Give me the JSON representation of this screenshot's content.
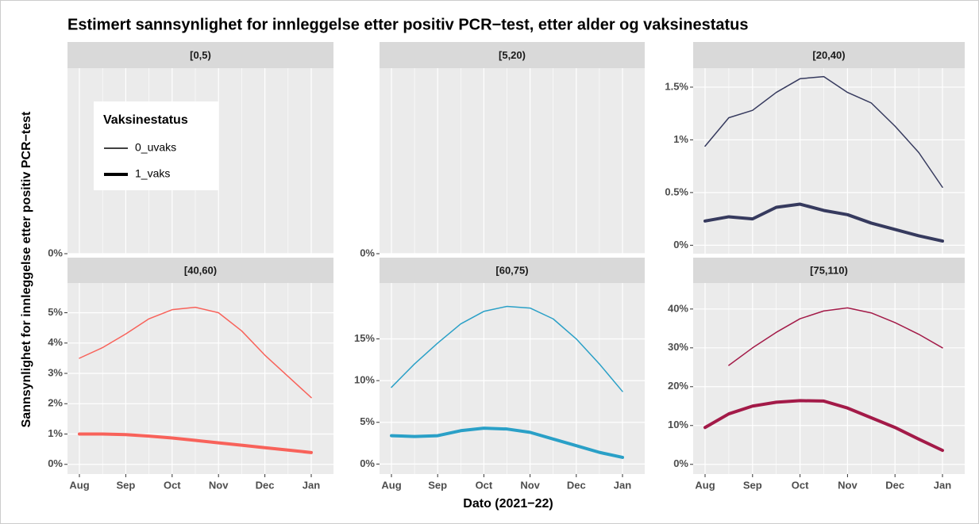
{
  "figure": {
    "title": "Estimert sannsynlighet for innleggelse etter positiv PCR−test, etter alder og vaksinestatus",
    "x_label": "Dato (2021−22)",
    "y_label": "Sannsynlighet for innleggelse etter positiv PCR−test",
    "categories": [
      "Aug",
      null,
      "Sep",
      null,
      "Oct",
      null,
      "Nov",
      null,
      "Dec",
      null,
      "Jan"
    ],
    "legend": {
      "title": "Vaksinestatus",
      "entries": [
        "0_uvaks",
        "1_vaks"
      ]
    }
  },
  "chart_data": [
    {
      "type": "line",
      "title": "[0,5)",
      "series": [],
      "ylim": [
        0,
        1
      ],
      "yticks": [
        {
          "value": 0,
          "label": "0%"
        }
      ],
      "grid": true
    },
    {
      "type": "line",
      "title": "[5,20)",
      "series": [],
      "ylim": [
        0,
        1
      ],
      "yticks": [
        {
          "value": 0,
          "label": "0%"
        }
      ],
      "grid": true
    },
    {
      "type": "line",
      "title": "[20,40)",
      "ylim": [
        -0.08,
        1.68
      ],
      "yticks": [
        {
          "value": 0,
          "label": "0%"
        },
        {
          "value": 0.5,
          "label": "0.5%"
        },
        {
          "value": 1,
          "label": "1%"
        },
        {
          "value": 1.5,
          "label": "1.5%"
        }
      ],
      "grid": true,
      "series": [
        {
          "color": "#363a5e",
          "values": [
            0.94,
            1.21,
            1.28,
            1.45,
            1.58,
            1.6,
            1.45,
            1.35,
            1.13,
            0.88,
            0.55
          ]
        },
        {
          "color": "#363a5e",
          "values": [
            0.23,
            0.27,
            0.25,
            0.36,
            0.39,
            0.33,
            0.29,
            0.21,
            0.15,
            0.09,
            0.04
          ]
        }
      ]
    },
    {
      "type": "line",
      "title": "[40,60)",
      "ylim": [
        -0.32,
        5.98
      ],
      "yticks": [
        {
          "value": 0,
          "label": "0%"
        },
        {
          "value": 1,
          "label": "1%"
        },
        {
          "value": 2,
          "label": "2%"
        },
        {
          "value": 3,
          "label": "3%"
        },
        {
          "value": 4,
          "label": "4%"
        },
        {
          "value": 5,
          "label": "5%"
        }
      ],
      "grid": true,
      "series": [
        {
          "color": "#f8625a",
          "values": [
            3.5,
            3.85,
            4.3,
            4.8,
            5.1,
            5.18,
            5.0,
            4.4,
            3.6,
            2.9,
            2.2
          ]
        },
        {
          "color": "#f8625a",
          "values": [
            1.0,
            1.0,
            0.98,
            0.93,
            0.87,
            0.79,
            0.71,
            0.63,
            0.55,
            0.47,
            0.39
          ]
        }
      ]
    },
    {
      "type": "line",
      "title": "[60,75)",
      "ylim": [
        -1.2,
        21.7
      ],
      "yticks": [
        {
          "value": 0,
          "label": "0%"
        },
        {
          "value": 5,
          "label": "5%"
        },
        {
          "value": 10,
          "label": "10%"
        },
        {
          "value": 15,
          "label": "15%"
        }
      ],
      "grid": true,
      "series": [
        {
          "color": "#2aa0c7",
          "values": [
            9.2,
            12.0,
            14.5,
            16.8,
            18.3,
            18.9,
            18.7,
            17.4,
            15.0,
            12.0,
            8.7
          ]
        },
        {
          "color": "#2aa0c7",
          "values": [
            3.4,
            3.3,
            3.4,
            4.0,
            4.3,
            4.2,
            3.8,
            3.0,
            2.2,
            1.4,
            0.8
          ]
        }
      ]
    },
    {
      "type": "line",
      "title": "[75,110)",
      "ylim": [
        -2.5,
        46.7
      ],
      "yticks": [
        {
          "value": 0,
          "label": "0%"
        },
        {
          "value": 10,
          "label": "10%"
        },
        {
          "value": 20,
          "label": "20%"
        },
        {
          "value": 30,
          "label": "30%"
        },
        {
          "value": 40,
          "label": "40%"
        }
      ],
      "grid": true,
      "series": [
        {
          "color": "#a31a48",
          "values": [
            null,
            25.5,
            30,
            34,
            37.5,
            39.5,
            40.3,
            39,
            36.5,
            33.5,
            30
          ]
        },
        {
          "color": "#a31a48",
          "values": [
            9.5,
            13,
            15,
            16,
            16.4,
            16.3,
            14.5,
            12,
            9.5,
            6.5,
            3.6
          ]
        }
      ]
    }
  ]
}
